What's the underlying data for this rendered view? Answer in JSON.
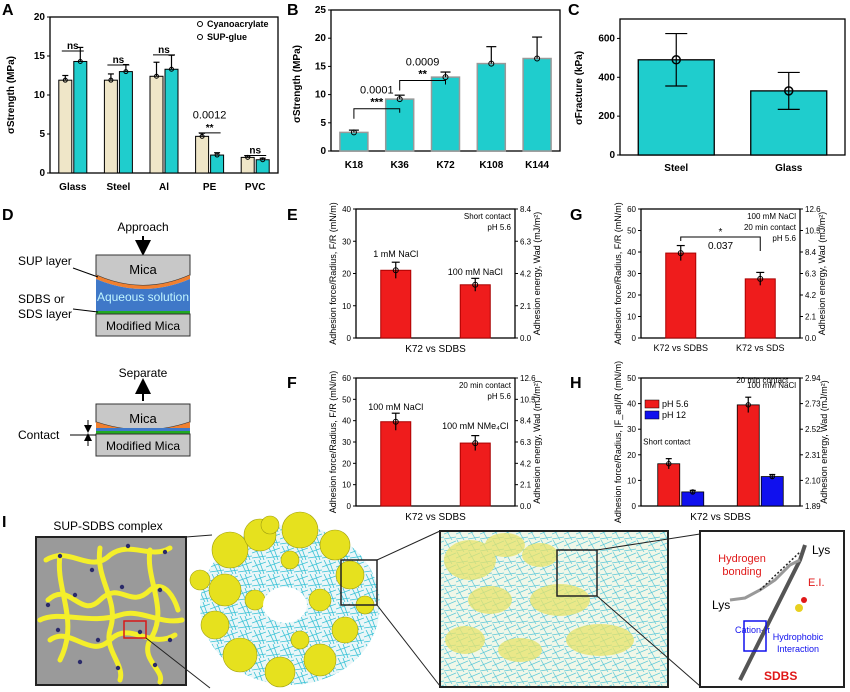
{
  "panel_labels": [
    "A",
    "B",
    "C",
    "D",
    "E",
    "F",
    "G",
    "H",
    "I"
  ],
  "colors": {
    "beige": "#efe6c8",
    "cyan": "#1fcdcd",
    "red": "#ef1c1c",
    "blue": "#1010ee",
    "gray": "#c8c8c8",
    "orange": "#f08030",
    "aqua": "#3f78c8",
    "green": "#22aa22",
    "yellow": "#f4ef2a"
  },
  "chart_data": [
    {
      "id": "A",
      "type": "bar",
      "categories": [
        "Glass",
        "Steel",
        "Al",
        "PE",
        "PVC"
      ],
      "series": [
        {
          "name": "Cyanoacrylate",
          "color": "#efe6c8",
          "values": [
            11.9,
            11.9,
            12.4,
            4.7,
            2.0
          ],
          "errors": [
            0.6,
            0.8,
            1.8,
            0.4,
            0.2
          ]
        },
        {
          "name": "SUP-glue",
          "color": "#1fcdcd",
          "values": [
            14.3,
            13.0,
            13.3,
            2.3,
            1.7
          ],
          "errors": [
            1.8,
            0.9,
            1.8,
            0.3,
            0.2
          ]
        }
      ],
      "ylabel": "σStrength (MPa)",
      "ylim": [
        0,
        20
      ],
      "yticks": [
        0,
        5,
        10,
        15,
        20
      ],
      "annotations": [
        {
          "cat": 0,
          "text": "ns",
          "y": 15.9
        },
        {
          "cat": 1,
          "text": "ns",
          "y": 14.1
        },
        {
          "cat": 2,
          "text": "ns",
          "y": 15.4
        },
        {
          "cat": 3,
          "text": "**",
          "y": 5.4
        },
        {
          "cat": 3,
          "text": "0.0012",
          "y": 7.0
        },
        {
          "cat": 4,
          "text": "ns",
          "y": 2.5
        }
      ],
      "legend": "top-right"
    },
    {
      "id": "B",
      "type": "bar",
      "categories": [
        "K18",
        "K36",
        "K72",
        "K108",
        "K144"
      ],
      "values": [
        3.3,
        9.2,
        13.1,
        15.5,
        16.4
      ],
      "errors": [
        0.4,
        0.7,
        0.9,
        3.0,
        3.8
      ],
      "color": "#1fcdcd",
      "ylabel": "σStrength (MPa)",
      "ylim": [
        0,
        25
      ],
      "yticks": [
        0,
        5,
        10,
        15,
        20,
        25
      ],
      "brackets": [
        {
          "from": 0,
          "to": 1,
          "star": "***",
          "p": "0.0001"
        },
        {
          "from": 1,
          "to": 2,
          "star": "**",
          "p": "0.0009"
        }
      ]
    },
    {
      "id": "C",
      "type": "bar",
      "categories": [
        "Steel",
        "Glass"
      ],
      "values": [
        490,
        330
      ],
      "errors": [
        135,
        95
      ],
      "color": "#1fcdcd",
      "ylabel": "σFracture (kPa)",
      "ylim": [
        0,
        700
      ],
      "yticks": [
        0,
        200,
        400,
        600
      ]
    },
    {
      "id": "E",
      "type": "bar",
      "xlabel": "K72 vs SDBS",
      "labels": [
        "1 mM NaCl",
        "100 mM NaCl"
      ],
      "values": [
        21,
        16.5
      ],
      "errors": [
        2.5,
        2
      ],
      "ylabel": "Adhesion force/Radius, F/R (mN/m)",
      "y2label": "Adhesion energy, Wad (mJ/m²)",
      "ylim": [
        0,
        40
      ],
      "yticks": [
        0,
        10,
        20,
        30,
        40
      ],
      "y2ticks": [
        "0.0",
        "2.1",
        "4.2",
        "6.3",
        "8.4"
      ],
      "note": [
        "Short contact",
        "pH 5.6"
      ]
    },
    {
      "id": "F",
      "type": "bar",
      "xlabel": "K72 vs SDBS",
      "labels": [
        "100 mM NaCl",
        "100 mM NMe₄Cl"
      ],
      "values": [
        39.5,
        29.5
      ],
      "errors": [
        4,
        3.5
      ],
      "ylabel": "Adhesion force/Radius, F/R (mN/m)",
      "y2label": "Adhesion energy, Wad (mJ/m²)",
      "ylim": [
        0,
        60
      ],
      "yticks": [
        0,
        10,
        20,
        30,
        40,
        50,
        60
      ],
      "y2ticks": [
        "0.0",
        "2.1",
        "4.2",
        "6.3",
        "8.4",
        "10.5",
        "12.6"
      ],
      "note": [
        "20 min contact",
        "pH 5.6"
      ]
    },
    {
      "id": "G",
      "type": "bar",
      "categories": [
        "K72 vs SDBS",
        "K72 vs SDS"
      ],
      "values": [
        39.5,
        27.5
      ],
      "errors": [
        3.5,
        3
      ],
      "ylabel": "Adhesion force/Radius, F/R (mN/m)",
      "y2label": "Adhesion energy, Wad (mJ/m²)",
      "ylim": [
        0,
        60
      ],
      "yticks": [
        0,
        10,
        20,
        30,
        40,
        50,
        60
      ],
      "y2ticks": [
        "0.0",
        "2.1",
        "4.2",
        "6.3",
        "8.4",
        "10.5",
        "12.6"
      ],
      "note": [
        "100 mM NaCl",
        "20 min contact",
        "pH 5.6"
      ],
      "bracket": {
        "star": "*",
        "p": "0.037"
      }
    },
    {
      "id": "H",
      "type": "bar",
      "xlabel": "K72 vs SDBS",
      "groups": [
        "Short contact",
        "20 min contact"
      ],
      "series": [
        {
          "name": "pH 5.6",
          "color": "#ef1c1c",
          "values": [
            16.5,
            39.5
          ],
          "errors": [
            2,
            3
          ]
        },
        {
          "name": "pH 12",
          "color": "#1010ee",
          "values": [
            5.5,
            11.5
          ],
          "errors": [
            0.6,
            0.8
          ]
        }
      ],
      "ylabel": "Adhesion force/Radius, |F_ad|/R (mN/m)",
      "y2label": "Adhesion energy, Wad (mJ/m²)",
      "ylim": [
        0,
        50
      ],
      "yticks": [
        0,
        10,
        20,
        30,
        40,
        50
      ],
      "y2ticks": [
        "1.89",
        "2.10",
        "2.31",
        "2.52",
        "2.73",
        "2.94"
      ],
      "note": [
        "100 mM NaCl"
      ],
      "legend": "top-left"
    }
  ],
  "panelD": {
    "approach": "Approach",
    "separate": "Separate",
    "sup_layer": "SUP layer",
    "sdbs_layer": [
      "SDBS or",
      "SDS layer"
    ],
    "contact": "Contact",
    "mica": "Mica",
    "aqueous": "Aqueous solution",
    "modified_mica": "Modified Mica"
  },
  "panelI": {
    "title": "SUP-SDBS complex",
    "hbond": [
      "Hydrogen",
      "bonding"
    ],
    "lys": "Lys",
    "ei": "E.I.",
    "cation_pi": "Cation-π",
    "hydrophobic": [
      "Hydrophobic",
      "Interaction"
    ],
    "sdbs": "SDBS"
  }
}
